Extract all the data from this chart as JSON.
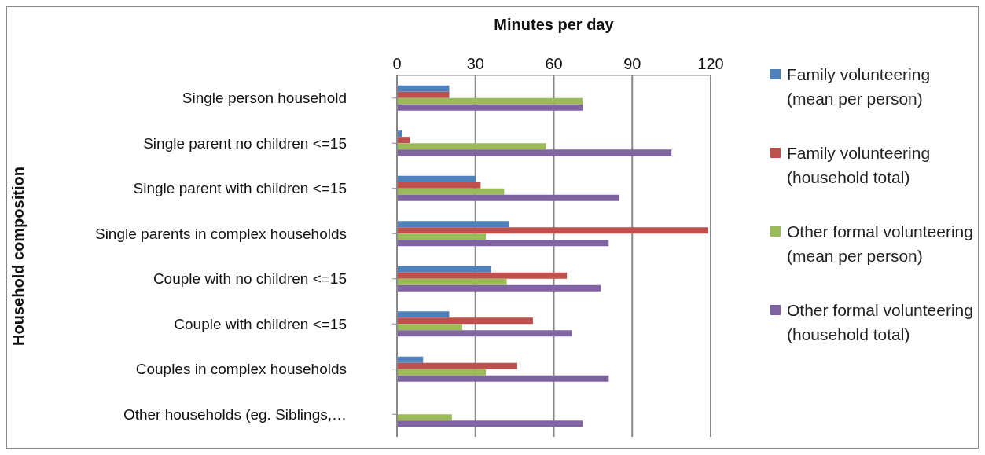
{
  "chart_data": {
    "type": "bar",
    "orientation": "horizontal",
    "xlabel": "Minutes per day",
    "ylabel": "Household composition",
    "categories": [
      "Single person household",
      "Single parent no children <=15",
      "Single parent with children <=15",
      "Single parents in complex households",
      "Couple with no children <=15",
      "Couple with children  <=15",
      "Couples in complex households",
      "Other households (eg. Siblings,…"
    ],
    "series": [
      {
        "name": "Family volunteering (mean per person)",
        "color": "#4f81bd",
        "values": [
          20,
          2,
          30,
          43,
          36,
          20,
          10,
          null
        ]
      },
      {
        "name": "Family volunteering (household total)",
        "color": "#c0504d",
        "values": [
          20,
          5,
          32,
          119,
          65,
          52,
          46,
          null
        ]
      },
      {
        "name": "Other formal volunteering (mean per person)",
        "color": "#9bbb59",
        "values": [
          71,
          57,
          41,
          34,
          42,
          25,
          34,
          21
        ]
      },
      {
        "name": "Other formal volunteering (household total)",
        "color": "#8064a2",
        "values": [
          71,
          105,
          85,
          81,
          78,
          67,
          81,
          71
        ]
      }
    ],
    "xlim": [
      0,
      120
    ],
    "xticks": [
      0,
      30,
      60,
      90,
      120
    ],
    "grid": "x",
    "legend": "right"
  }
}
